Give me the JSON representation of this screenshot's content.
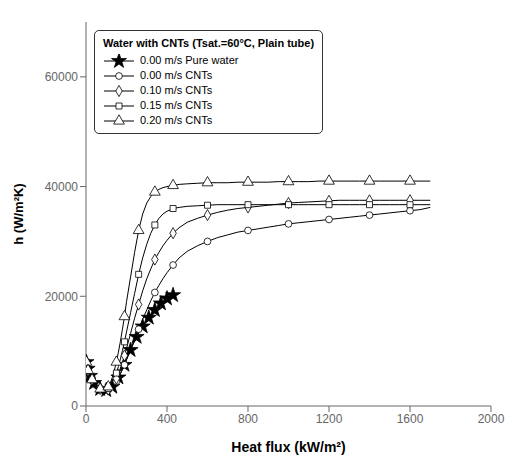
{
  "chart_data": {
    "type": "line",
    "xlabel": "Heat flux (kW/m²)",
    "ylabel": "h (W/m²K)",
    "xlim": [
      0,
      2000
    ],
    "ylim": [
      0,
      70000
    ],
    "xticks": [
      0,
      400,
      800,
      1200,
      1600,
      2000
    ],
    "yticks": [
      0,
      20000,
      40000,
      60000
    ],
    "grid": false,
    "legend": "upper left",
    "legend_title": "Water with CNTs (Tsat.=60°C, Plain tube)",
    "series": [
      {
        "name": "0.00 m/s Pure water",
        "marker": "star",
        "color": "#000000",
        "x": [
          2,
          4,
          6,
          8,
          10,
          15,
          20,
          25,
          30,
          40,
          50,
          60,
          70,
          80,
          90,
          100,
          110,
          120,
          130,
          140,
          150,
          160,
          170,
          180,
          190,
          200,
          210,
          220,
          230,
          240,
          250,
          260,
          270,
          280,
          290,
          300,
          310,
          320,
          330,
          340,
          350,
          360,
          370,
          380,
          390,
          400,
          410,
          420,
          430,
          440,
          450
        ],
        "values": [
          8000,
          7500,
          7000,
          6800,
          6500,
          6000,
          5500,
          5200,
          4800,
          4200,
          3800,
          3400,
          3100,
          3000,
          2900,
          2900,
          3000,
          3200,
          3500,
          4000,
          4500,
          5200,
          5900,
          6700,
          7500,
          8400,
          9300,
          10200,
          11000,
          11800,
          12600,
          13300,
          13900,
          14500,
          15000,
          15600,
          16100,
          16600,
          17100,
          17500,
          17900,
          18300,
          18700,
          19000,
          19300,
          19600,
          19800,
          20000,
          20200,
          20400,
          20500
        ]
      },
      {
        "name": "0.00 m/s CNTs",
        "marker": "circle",
        "color": "#000000",
        "x": [
          2,
          4,
          6,
          8,
          10,
          15,
          20,
          25,
          30,
          40,
          50,
          60,
          70,
          80,
          90,
          100,
          110,
          120,
          130,
          140,
          150,
          160,
          170,
          180,
          190,
          200,
          220,
          240,
          260,
          280,
          300,
          320,
          340,
          360,
          380,
          400,
          430,
          460,
          500,
          550,
          600,
          650,
          700,
          750,
          800,
          850,
          900,
          950,
          1000,
          1050,
          1100,
          1150,
          1200,
          1250,
          1300,
          1350,
          1400,
          1450,
          1500,
          1550,
          1600,
          1650,
          1700
        ],
        "values": [
          8000,
          7500,
          7000,
          6800,
          6500,
          6000,
          5500,
          5200,
          4800,
          4200,
          3800,
          3400,
          3100,
          3000,
          2900,
          2900,
          3000,
          3200,
          3500,
          4000,
          4500,
          5200,
          5900,
          6700,
          7500,
          8500,
          10300,
          12200,
          14000,
          15800,
          17500,
          19200,
          20700,
          22000,
          23200,
          24300,
          25700,
          27000,
          28200,
          29200,
          30000,
          30700,
          31200,
          31700,
          32000,
          32300,
          32600,
          32900,
          33200,
          33400,
          33600,
          33800,
          34000,
          34200,
          34400,
          34600,
          34800,
          35000,
          35200,
          35400,
          35600,
          35800,
          36200
        ]
      },
      {
        "name": "0.10 m/s CNTs",
        "marker": "diamond",
        "color": "#000000",
        "x": [
          2,
          4,
          6,
          8,
          10,
          15,
          20,
          25,
          30,
          40,
          50,
          60,
          70,
          80,
          90,
          100,
          110,
          120,
          130,
          140,
          150,
          160,
          170,
          180,
          190,
          200,
          220,
          240,
          260,
          280,
          300,
          320,
          340,
          360,
          380,
          400,
          430,
          460,
          500,
          550,
          600,
          650,
          700,
          750,
          800,
          850,
          900,
          950,
          1000,
          1050,
          1100,
          1150,
          1200,
          1250,
          1300,
          1350,
          1400,
          1450,
          1500,
          1550,
          1600,
          1650,
          1700
        ],
        "values": [
          8000,
          7500,
          7000,
          6800,
          6500,
          6000,
          5500,
          5200,
          4800,
          4200,
          3800,
          3400,
          3100,
          3000,
          2900,
          2900,
          3000,
          3200,
          3600,
          4200,
          5000,
          5900,
          6900,
          8000,
          9200,
          10500,
          13200,
          16000,
          18500,
          21000,
          23200,
          25000,
          26700,
          28000,
          29200,
          30200,
          31500,
          32500,
          33500,
          34200,
          34800,
          35300,
          35700,
          36000,
          36200,
          36400,
          36600,
          36800,
          37000,
          37100,
          37200,
          37300,
          37400,
          37500,
          37500,
          37500,
          37500,
          37500,
          37500,
          37500,
          37500,
          37500,
          37500
        ]
      },
      {
        "name": "0.15 m/s CNTs",
        "marker": "square",
        "color": "#000000",
        "x": [
          2,
          4,
          6,
          8,
          10,
          15,
          20,
          25,
          30,
          40,
          50,
          60,
          70,
          80,
          90,
          100,
          110,
          120,
          130,
          140,
          150,
          160,
          170,
          180,
          190,
          200,
          220,
          240,
          260,
          280,
          300,
          320,
          340,
          360,
          380,
          400,
          430,
          460,
          500,
          550,
          600,
          650,
          700,
          750,
          800,
          850,
          900,
          950,
          1000,
          1050,
          1100,
          1150,
          1200,
          1250,
          1300,
          1350,
          1400,
          1450,
          1500,
          1550,
          1600,
          1650,
          1700
        ],
        "values": [
          8000,
          7500,
          7000,
          6800,
          6500,
          6000,
          5500,
          5200,
          4800,
          4200,
          3800,
          3400,
          3100,
          3000,
          2900,
          3000,
          3200,
          3600,
          4100,
          5000,
          6000,
          7200,
          8600,
          10100,
          11700,
          13500,
          17000,
          20500,
          24000,
          27000,
          29500,
          31500,
          33000,
          34200,
          35000,
          35500,
          36000,
          36200,
          36400,
          36500,
          36600,
          36700,
          36700,
          36700,
          36700,
          36700,
          36700,
          36700,
          36700,
          36700,
          36700,
          36700,
          36700,
          36700,
          36700,
          36700,
          36700,
          36700,
          36700,
          36700,
          36700,
          36700,
          36700
        ]
      },
      {
        "name": "0.20 m/s CNTs",
        "marker": "triangle",
        "color": "#000000",
        "x": [
          2,
          4,
          6,
          8,
          10,
          15,
          20,
          25,
          30,
          40,
          50,
          60,
          70,
          80,
          90,
          100,
          110,
          120,
          130,
          140,
          150,
          160,
          170,
          180,
          190,
          200,
          220,
          240,
          260,
          280,
          300,
          320,
          340,
          360,
          380,
          400,
          430,
          460,
          500,
          550,
          600,
          650,
          700,
          750,
          800,
          850,
          900,
          950,
          1000,
          1050,
          1100,
          1150,
          1200,
          1250,
          1300,
          1350,
          1400,
          1450,
          1500,
          1550,
          1600,
          1650,
          1700
        ],
        "values": [
          8000,
          7500,
          7000,
          6800,
          6500,
          6000,
          5500,
          5200,
          4800,
          4200,
          3800,
          3400,
          3100,
          3000,
          2900,
          3100,
          3500,
          4200,
          5200,
          6500,
          8000,
          9800,
          11800,
          14000,
          16300,
          19000,
          23500,
          28000,
          32000,
          35000,
          37000,
          38200,
          39000,
          39500,
          39800,
          40000,
          40200,
          40400,
          40500,
          40600,
          40700,
          40700,
          40700,
          40800,
          40800,
          40800,
          40800,
          40900,
          40900,
          40900,
          40900,
          41000,
          41000,
          41000,
          41000,
          41000,
          41000,
          41000,
          41000,
          41000,
          41000,
          41000,
          41000
        ]
      }
    ]
  }
}
